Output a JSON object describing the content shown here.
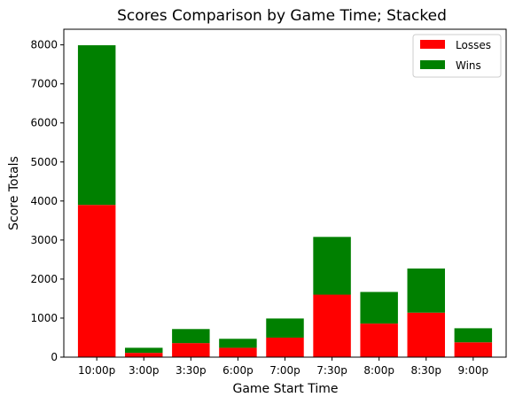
{
  "chart_data": {
    "type": "bar",
    "stacked": true,
    "title": "Scores Comparison by Game Time; Stacked",
    "xlabel": "Game Start Time",
    "ylabel": "Score Totals",
    "categories": [
      "10:00p",
      "3:00p",
      "3:30p",
      "6:00p",
      "7:00p",
      "7:30p",
      "8:00p",
      "8:30p",
      "9:00p"
    ],
    "series": [
      {
        "name": "Losses",
        "color": "#ff0000",
        "values": [
          3900,
          110,
          360,
          240,
          500,
          1600,
          860,
          1140,
          380
        ]
      },
      {
        "name": "Wins",
        "color": "#008000",
        "values": [
          4090,
          130,
          360,
          230,
          490,
          1480,
          810,
          1130,
          360
        ]
      }
    ],
    "ylim": [
      0,
      8400
    ],
    "yticks": [
      0,
      1000,
      2000,
      3000,
      4000,
      5000,
      6000,
      7000,
      8000
    ],
    "grid": false,
    "legend": "upper-right"
  }
}
